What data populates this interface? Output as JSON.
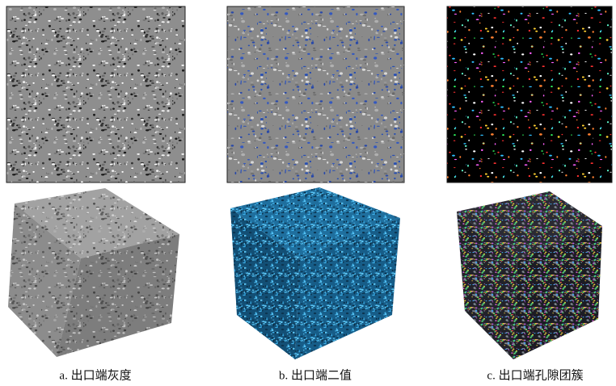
{
  "panels": [
    {
      "caption": "a. 出口端灰度"
    },
    {
      "caption": "b. 出口端二值"
    },
    {
      "caption": "c. 出口端孔隙团簇"
    }
  ]
}
